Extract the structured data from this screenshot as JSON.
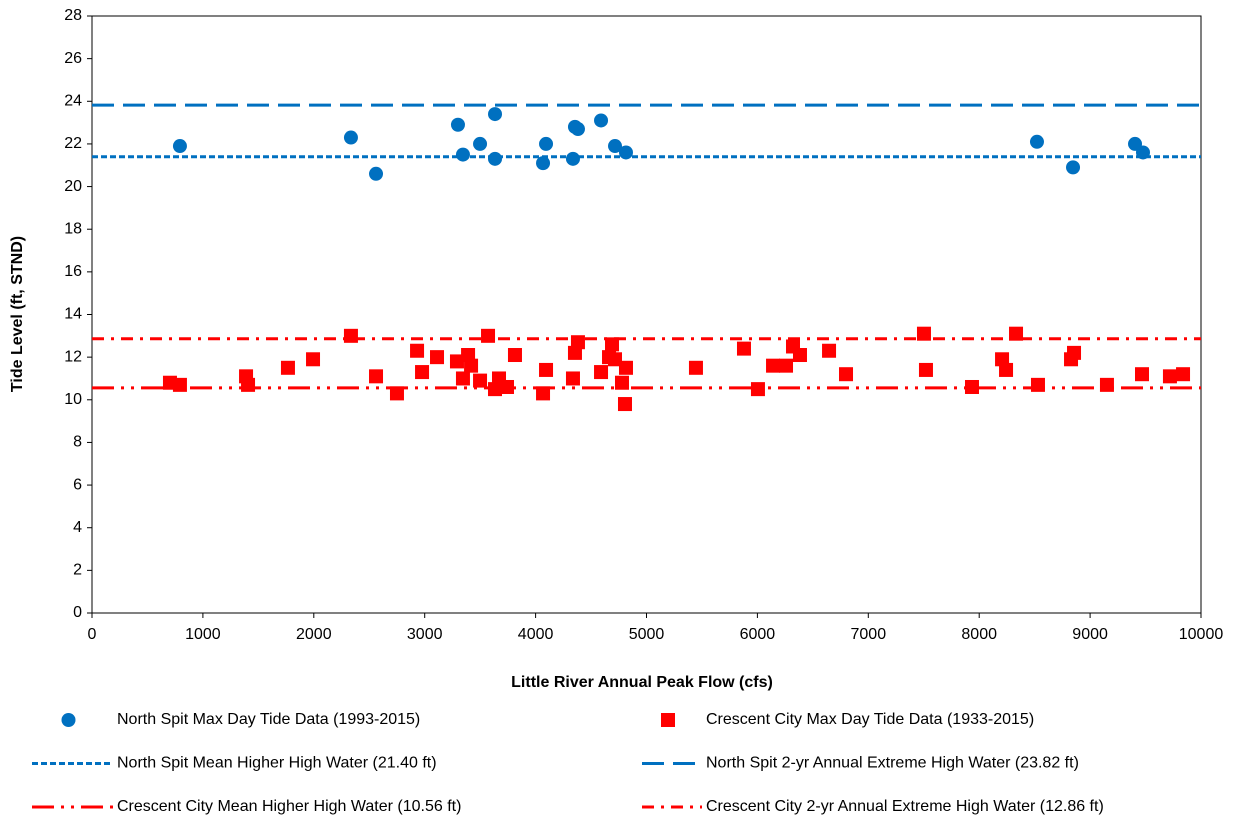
{
  "chart_data": {
    "type": "scatter",
    "xlabel": "Little River Annual Peak Flow (cfs)",
    "ylabel": "Tide Level (ft, STND)",
    "xlim": [
      0,
      10000
    ],
    "xticks": [
      0,
      1000,
      2000,
      3000,
      4000,
      5000,
      6000,
      7000,
      8000,
      9000,
      10000
    ],
    "ylim": [
      0,
      28
    ],
    "yticks": [
      0,
      2,
      4,
      6,
      8,
      10,
      12,
      14,
      16,
      18,
      20,
      22,
      24,
      26,
      28
    ],
    "series": [
      {
        "name": "North Spit Max Day Tide Data (1993-2015)",
        "color": "#0070c0",
        "marker": "circle",
        "x": [
          793,
          2335,
          2561,
          3300,
          3345,
          3499,
          3634,
          3634,
          4067,
          4094,
          4337,
          4355,
          4382,
          4590,
          4716,
          4815,
          8521,
          8846,
          9405,
          9477
        ],
        "values": [
          21.9,
          22.3,
          20.6,
          22.9,
          21.5,
          22.0,
          23.4,
          21.3,
          21.1,
          22.0,
          21.3,
          22.8,
          22.7,
          23.1,
          21.9,
          21.6,
          22.1,
          20.9,
          22.0,
          21.6
        ]
      },
      {
        "name": "Crescent City Max Day Tide Data (1933-2015)",
        "color": "#ff0000",
        "marker": "square",
        "x": [
          703,
          793,
          1389,
          1407,
          1767,
          1993,
          2335,
          2561,
          2750,
          2931,
          2976,
          3111,
          3291,
          3345,
          3391,
          3418,
          3499,
          3571,
          3634,
          3670,
          3742,
          3814,
          4067,
          4094,
          4337,
          4355,
          4382,
          4590,
          4662,
          4689,
          4716,
          4779,
          4806,
          4815,
          5446,
          5879,
          6005,
          6141,
          6258,
          6321,
          6384,
          6646,
          6799,
          7502,
          7520,
          7935,
          8206,
          8242,
          8332,
          8530,
          8828,
          8855,
          9152,
          9468,
          9720,
          9838
        ],
        "values": [
          10.8,
          10.7,
          11.1,
          10.7,
          11.5,
          11.9,
          13.0,
          11.1,
          10.3,
          12.3,
          11.3,
          12.0,
          11.8,
          11.0,
          12.1,
          11.6,
          10.9,
          13.0,
          10.5,
          11.0,
          10.6,
          12.1,
          10.3,
          11.4,
          11.0,
          12.2,
          12.7,
          11.3,
          12.0,
          12.6,
          11.9,
          10.8,
          9.8,
          11.5,
          11.5,
          12.4,
          10.5,
          11.6,
          11.6,
          12.5,
          12.1,
          12.3,
          11.2,
          13.1,
          11.4,
          10.6,
          11.9,
          11.4,
          13.1,
          10.7,
          11.9,
          12.2,
          10.7,
          11.2,
          11.1,
          11.2
        ]
      }
    ],
    "reference_lines": [
      {
        "name": "North Spit Mean Higher High Water (21.40 ft)",
        "value": 21.4,
        "color": "#0070c0",
        "dash": "6,3"
      },
      {
        "name": "North Spit 2-yr Annual Extreme High Water (23.82 ft)",
        "value": 23.82,
        "color": "#0070c0",
        "dash": "22,9"
      },
      {
        "name": "Crescent City Mean Higher High Water (10.56 ft)",
        "value": 10.56,
        "color": "#ff0000",
        "dash": "22,7,3,7,3,7"
      },
      {
        "name": "Crescent City 2-yr Annual Extreme High Water (12.86 ft)",
        "value": 12.86,
        "color": "#ff0000",
        "dash": "12,7,3,7"
      }
    ]
  }
}
